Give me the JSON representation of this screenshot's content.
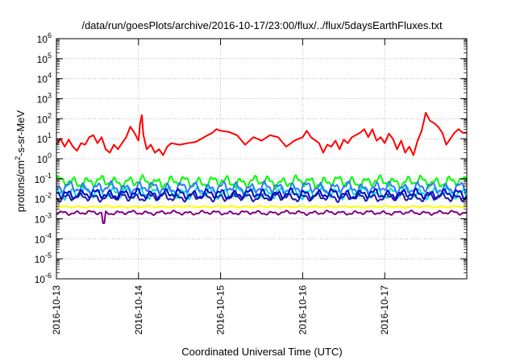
{
  "chart_data": {
    "type": "line",
    "title": "/data/run/goesPlots/archive/2016-10-17/23:00/flux/../flux/5daysEarthFluxes.txt",
    "xlabel": "Coordinated Universal Time (UTC)",
    "ylabel": {
      "pre": "protons/cm",
      "sup": "2",
      "post": "-s-sr-MeV"
    },
    "yscale": "log",
    "ylim": [
      1e-06,
      1000000.0
    ],
    "ytick_exponents": [
      -6,
      -5,
      -4,
      -3,
      -2,
      -1,
      0,
      1,
      2,
      3,
      4,
      5,
      6
    ],
    "xlim_days": [
      0,
      5
    ],
    "xtick_labels": [
      "2016-10-13",
      "2016-10-14",
      "2016-10-15",
      "2016-10-16",
      "2016-10-17"
    ],
    "grid": true,
    "series": [
      {
        "color": "#ff0000",
        "points": [
          [
            0,
            5
          ],
          [
            0.05,
            10
          ],
          [
            0.1,
            4
          ],
          [
            0.15,
            9
          ],
          [
            0.2,
            4
          ],
          [
            0.25,
            2.5
          ],
          [
            0.3,
            6
          ],
          [
            0.35,
            5
          ],
          [
            0.4,
            12
          ],
          [
            0.45,
            15
          ],
          [
            0.5,
            6
          ],
          [
            0.55,
            12
          ],
          [
            0.6,
            3
          ],
          [
            0.65,
            2
          ],
          [
            0.7,
            5
          ],
          [
            0.75,
            3
          ],
          [
            0.8,
            6
          ],
          [
            0.85,
            12
          ],
          [
            0.9,
            40
          ],
          [
            0.95,
            20
          ],
          [
            1.0,
            8
          ],
          [
            1.02,
            60
          ],
          [
            1.04,
            150
          ],
          [
            1.06,
            15
          ],
          [
            1.1,
            3
          ],
          [
            1.15,
            5
          ],
          [
            1.2,
            2
          ],
          [
            1.25,
            3
          ],
          [
            1.3,
            1.5
          ],
          [
            1.35,
            4
          ],
          [
            1.4,
            6
          ],
          [
            1.5,
            5
          ],
          [
            1.6,
            6
          ],
          [
            1.7,
            7
          ],
          [
            1.8,
            12
          ],
          [
            1.9,
            20
          ],
          [
            1.95,
            30
          ],
          [
            2.0,
            25
          ],
          [
            2.1,
            22
          ],
          [
            2.2,
            15
          ],
          [
            2.3,
            5
          ],
          [
            2.4,
            12
          ],
          [
            2.5,
            8
          ],
          [
            2.6,
            15
          ],
          [
            2.7,
            12
          ],
          [
            2.8,
            4
          ],
          [
            2.9,
            8
          ],
          [
            3.0,
            12
          ],
          [
            3.05,
            25
          ],
          [
            3.1,
            12
          ],
          [
            3.2,
            6
          ],
          [
            3.25,
            2
          ],
          [
            3.3,
            5
          ],
          [
            3.35,
            4
          ],
          [
            3.4,
            8
          ],
          [
            3.45,
            3
          ],
          [
            3.5,
            9
          ],
          [
            3.55,
            6
          ],
          [
            3.6,
            12
          ],
          [
            3.7,
            20
          ],
          [
            3.75,
            30
          ],
          [
            3.8,
            12
          ],
          [
            3.85,
            30
          ],
          [
            3.9,
            8
          ],
          [
            3.95,
            12
          ],
          [
            4.0,
            6
          ],
          [
            4.05,
            18
          ],
          [
            4.1,
            10
          ],
          [
            4.15,
            3
          ],
          [
            4.2,
            8
          ],
          [
            4.25,
            2
          ],
          [
            4.3,
            4
          ],
          [
            4.35,
            1.5
          ],
          [
            4.4,
            8
          ],
          [
            4.45,
            25
          ],
          [
            4.5,
            200
          ],
          [
            4.55,
            80
          ],
          [
            4.6,
            60
          ],
          [
            4.65,
            40
          ],
          [
            4.7,
            20
          ],
          [
            4.75,
            5
          ],
          [
            4.8,
            10
          ],
          [
            4.85,
            20
          ],
          [
            4.9,
            30
          ],
          [
            4.95,
            20
          ],
          [
            5.0,
            20
          ]
        ]
      },
      {
        "color": "#00ff00",
        "center": 0.07,
        "amp": 0.35,
        "phase": 0.3
      },
      {
        "color": "#00dddd",
        "center": 0.02,
        "amp": 0.35,
        "phase": 1.1
      },
      {
        "color": "#3377ff",
        "center": 0.035,
        "amp": 0.35,
        "phase": 2.0
      },
      {
        "color": "#0000cc",
        "center": 0.017,
        "amp": 0.3,
        "phase": 2.7
      },
      {
        "color": "#1a1aaa",
        "center": 0.012,
        "amp": 0.25,
        "phase": 3.5
      },
      {
        "color": "#ffff00",
        "center": 0.004,
        "amp": 0.06,
        "phase": 4.2
      },
      {
        "color": "#800080",
        "center": 0.002,
        "amp": 0.12,
        "phase": 5.0
      }
    ]
  }
}
